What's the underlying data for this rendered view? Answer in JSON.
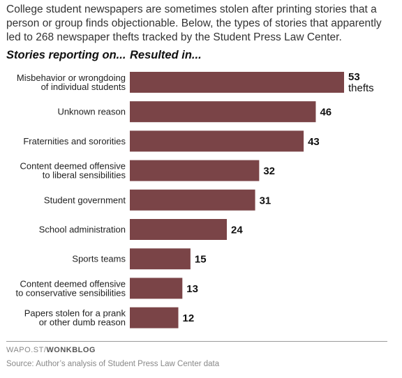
{
  "intro": "College student newspapers are sometimes stolen after printing stories that a person or group finds objectionable. Below, the types of stories that apparently led to 268 newspaper thefts tracked by the Student Press Law Center.",
  "column_headers": {
    "left": "Stories reporting on...",
    "right": "Resulted in..."
  },
  "chart_data": {
    "type": "bar",
    "orientation": "horizontal",
    "categories": [
      [
        "Misbehavior or wrongdoing",
        "of individual students"
      ],
      [
        "Unknown reason"
      ],
      [
        "Fraternities and sororities"
      ],
      [
        "Content deemed offensive",
        "to liberal sensibilities"
      ],
      [
        "Student government"
      ],
      [
        "School administration"
      ],
      [
        "Sports teams"
      ],
      [
        "Content deemed offensive",
        "to conservative sensibilities"
      ],
      [
        "Papers stolen for a prank",
        "or other dumb reason"
      ]
    ],
    "values": [
      53,
      46,
      43,
      32,
      31,
      24,
      15,
      13,
      12
    ],
    "value_unit": "thefts",
    "bar_color": "#7a4447",
    "xlim": [
      0,
      53
    ]
  },
  "footer": {
    "brand_prefix": "WAPO.ST/",
    "brand_name": "WONKBLOG",
    "source": "Source: Author’s analysis of Student Press Law Center data"
  }
}
